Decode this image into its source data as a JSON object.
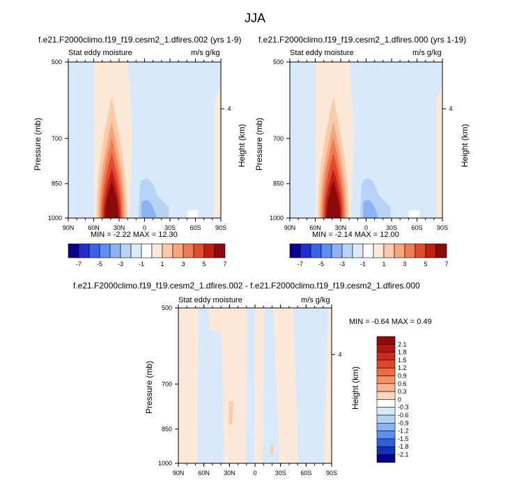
{
  "title": "JJA",
  "panels": [
    {
      "title": "f.e21.F2000climo.f19_f19.cesm2_1.dfires.002 (yrs 1-9)",
      "left_label": "Stat eddy moisture",
      "right_label": "m/s g/kg",
      "minmax": "MIN =  -2.22  MAX =  12.30"
    },
    {
      "title": "f.e21.F2000climo.f19_f19.cesm2_1.dfires.000 (yrs 1-19)",
      "left_label": "Stat eddy moisture",
      "right_label": "m/s g/kg",
      "minmax": "MIN =  -2.14  MAX =  12.00"
    },
    {
      "title": "f.e21.F2000climo.f19_f19.cesm2_1.dfires.002 - f.e21.F2000climo.f19_f19.cesm2_1.dfires.000",
      "left_label": "Stat eddy moisture",
      "right_label": "m/s g/kg",
      "minmax": "MIN =  -0.64  MAX =   0.49"
    }
  ],
  "axis": {
    "ylabel": "Pressure (mb)",
    "y2label": "Height (km)",
    "y2_tick": "4",
    "x_ticks": [
      "90N",
      "60N",
      "30N",
      "0",
      "30S",
      "60S",
      "90S"
    ],
    "y_ticks": [
      "500",
      "700",
      "850",
      "1000"
    ]
  },
  "colorbar_h": {
    "labels": [
      "-7",
      "-5",
      "-3",
      "-1",
      "1",
      "3",
      "5",
      "7"
    ],
    "colors": [
      "#08008c",
      "#1f2fcf",
      "#3a64e6",
      "#5b8ff0",
      "#8cb3f5",
      "#b7d4f7",
      "#dcebfb",
      "#ffffff",
      "#fde9d8",
      "#fbcbaa",
      "#f6a57c",
      "#ef7b55",
      "#e24b30",
      "#c02014",
      "#8b0a0a"
    ]
  },
  "colorbar_v": {
    "labels": [
      "2.1",
      "1.8",
      "1.5",
      "1.2",
      "0.9",
      "0.6",
      "0.3",
      "0",
      "-0.3",
      "-0.6",
      "-0.9",
      "-1.2",
      "-1.5",
      "-1.8",
      "-2.1"
    ],
    "colors": [
      "#8b0a0a",
      "#b01513",
      "#cc2a1c",
      "#e2442a",
      "#ef6a45",
      "#f58f66",
      "#f9b48f",
      "#fcd7bf",
      "#ffffff",
      "#d8e9fb",
      "#b3d2f6",
      "#8cb3f3",
      "#5d8ef0",
      "#2f62dd",
      "#1230b8",
      "#07008a"
    ]
  },
  "chart_data": [
    {
      "type": "heatmap",
      "title": "f.e21.F2000climo.f19_f19.cesm2_1.dfires.002 (yrs 1-9)",
      "variable": "Stat eddy moisture",
      "units": "m/s g/kg",
      "xlabel": "",
      "ylabel": "Pressure (mb)",
      "y2label": "Height (km)",
      "x_ticks": [
        "90N",
        "60N",
        "30N",
        "0",
        "30S",
        "60S",
        "90S"
      ],
      "y_ticks": [
        500,
        700,
        850,
        1000
      ],
      "contour_levels": [
        -7,
        -6,
        -5,
        -4,
        -3,
        -2,
        -1,
        0,
        1,
        2,
        3,
        4,
        5,
        6,
        7
      ],
      "min": -2.22,
      "max": 12.3,
      "features": [
        {
          "lat": "~25N",
          "pressure_range": [
            600,
            1000
          ],
          "peak": 12.3,
          "sign": "positive"
        },
        {
          "lat": "~10S",
          "pressure_range": [
            850,
            1000
          ],
          "peak": -2.22,
          "sign": "negative"
        }
      ]
    },
    {
      "type": "heatmap",
      "title": "f.e21.F2000climo.f19_f19.cesm2_1.dfires.000 (yrs 1-19)",
      "variable": "Stat eddy moisture",
      "units": "m/s g/kg",
      "xlabel": "",
      "ylabel": "Pressure (mb)",
      "y2label": "Height (km)",
      "x_ticks": [
        "90N",
        "60N",
        "30N",
        "0",
        "30S",
        "60S",
        "90S"
      ],
      "y_ticks": [
        500,
        700,
        850,
        1000
      ],
      "contour_levels": [
        -7,
        -6,
        -5,
        -4,
        -3,
        -2,
        -1,
        0,
        1,
        2,
        3,
        4,
        5,
        6,
        7
      ],
      "min": -2.14,
      "max": 12.0,
      "features": [
        {
          "lat": "~25N",
          "pressure_range": [
            600,
            1000
          ],
          "peak": 12.0,
          "sign": "positive"
        },
        {
          "lat": "~10S",
          "pressure_range": [
            850,
            1000
          ],
          "peak": -2.14,
          "sign": "negative"
        }
      ]
    },
    {
      "type": "heatmap",
      "title": "f.e21.F2000climo.f19_f19.cesm2_1.dfires.002 - f.e21.F2000climo.f19_f19.cesm2_1.dfires.000",
      "variable": "Stat eddy moisture",
      "units": "m/s g/kg",
      "xlabel": "",
      "ylabel": "Pressure (mb)",
      "y2label": "Height (km)",
      "x_ticks": [
        "90N",
        "60N",
        "30N",
        "0",
        "30S",
        "60S",
        "90S"
      ],
      "y_ticks": [
        500,
        700,
        850,
        1000
      ],
      "contour_levels": [
        -2.1,
        -1.8,
        -1.5,
        -1.2,
        -0.9,
        -0.6,
        -0.3,
        0,
        0.3,
        0.6,
        0.9,
        1.2,
        1.5,
        1.8,
        2.1
      ],
      "min": -0.64,
      "max": 0.49
    }
  ]
}
